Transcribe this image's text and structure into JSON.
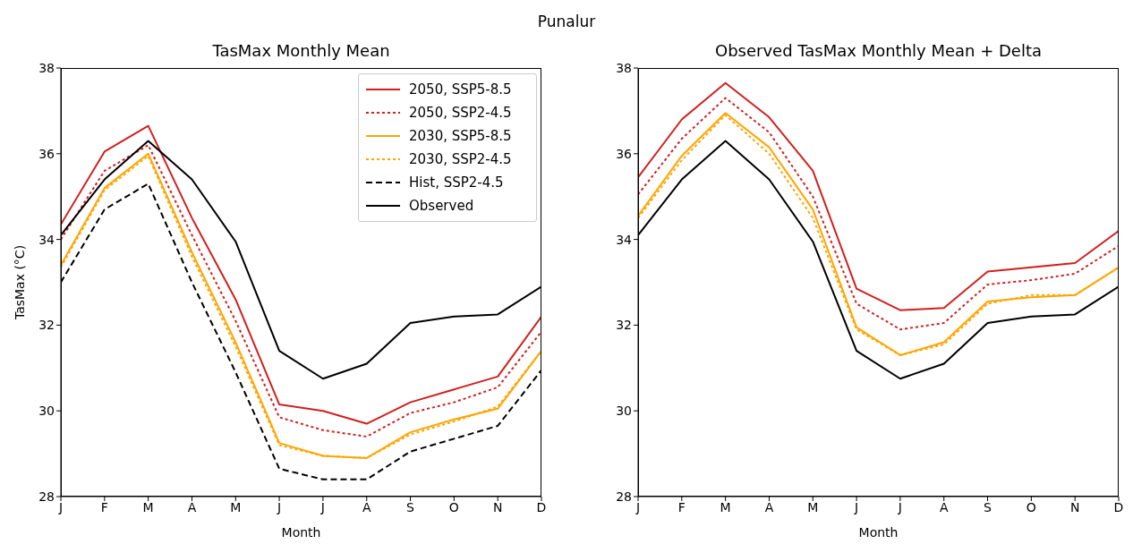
{
  "chart_data": [
    {
      "type": "line",
      "title": "TasMax Monthly Mean",
      "xlabel": "Month",
      "ylabel": "TasMax (°C)",
      "annotations": [
        "Punalur"
      ],
      "categories": [
        "J",
        "F",
        "M",
        "A",
        "M",
        "J",
        "J",
        "A",
        "S",
        "O",
        "N",
        "D"
      ],
      "series": [
        {
          "name": "2050, SSP5-8.5",
          "color": "#d11f1f",
          "line_style": "solid",
          "values": [
            34.35,
            36.05,
            36.65,
            34.5,
            32.6,
            30.15,
            30.0,
            29.7,
            30.2,
            30.5,
            30.8,
            32.2
          ]
        },
        {
          "name": "2050, SSP2-4.5",
          "color": "#d11f1f",
          "line_style": "dotted",
          "values": [
            34.0,
            35.6,
            36.2,
            34.1,
            32.1,
            29.85,
            29.55,
            29.4,
            29.95,
            30.2,
            30.55,
            31.85
          ]
        },
        {
          "name": "2030, SSP5-8.5",
          "color": "#ffa500",
          "line_style": "solid",
          "values": [
            33.4,
            35.2,
            36.0,
            33.7,
            31.6,
            29.25,
            28.95,
            28.9,
            29.5,
            29.8,
            30.05,
            31.4
          ]
        },
        {
          "name": "2030, SSP2-4.5",
          "color": "#ffa500",
          "line_style": "dotted",
          "values": [
            33.35,
            35.15,
            35.95,
            33.6,
            31.5,
            29.2,
            28.95,
            28.9,
            29.45,
            29.75,
            30.1,
            31.4
          ]
        },
        {
          "name": "Hist, SSP2-4.5",
          "color": "#000000",
          "line_style": "dashed",
          "values": [
            33.0,
            34.7,
            35.3,
            33.0,
            30.9,
            28.65,
            28.4,
            28.4,
            29.05,
            29.35,
            29.65,
            30.95
          ]
        },
        {
          "name": "Observed",
          "color": "#000000",
          "line_style": "solid",
          "values": [
            34.1,
            35.4,
            36.3,
            35.4,
            33.95,
            31.4,
            30.75,
            31.1,
            32.05,
            32.2,
            32.25,
            32.9
          ]
        }
      ],
      "ylim": [
        28,
        38
      ],
      "yticks": [
        28,
        30,
        32,
        34,
        36,
        38
      ],
      "grid": false,
      "legend": "top right",
      "marker": "none"
    },
    {
      "type": "line",
      "title": "Observed TasMax Monthly Mean + Delta",
      "xlabel": "Month",
      "categories": [
        "J",
        "F",
        "M",
        "A",
        "M",
        "J",
        "J",
        "A",
        "S",
        "O",
        "N",
        "D"
      ],
      "series": [
        {
          "color": "#d11f1f",
          "line_style": "solid",
          "values": [
            35.45,
            36.8,
            37.65,
            36.85,
            35.6,
            32.85,
            32.35,
            32.4,
            33.25,
            33.35,
            33.45,
            34.2
          ]
        },
        {
          "color": "#d11f1f",
          "line_style": "dotted",
          "values": [
            35.05,
            36.35,
            37.3,
            36.5,
            35.0,
            32.5,
            31.9,
            32.05,
            32.95,
            33.05,
            33.2,
            33.85
          ]
        },
        {
          "color": "#ffa500",
          "line_style": "solid",
          "values": [
            34.55,
            35.95,
            36.95,
            36.15,
            34.7,
            31.95,
            31.3,
            31.6,
            32.55,
            32.65,
            32.7,
            33.35
          ]
        },
        {
          "color": "#ffa500",
          "line_style": "dotted",
          "values": [
            34.5,
            35.85,
            36.9,
            36.0,
            34.5,
            31.9,
            31.3,
            31.55,
            32.5,
            32.7,
            32.7,
            33.35
          ]
        },
        {
          "color": "#000000",
          "line_style": "solid",
          "values": [
            34.1,
            35.4,
            36.3,
            35.4,
            33.95,
            31.4,
            30.75,
            31.1,
            32.05,
            32.2,
            32.25,
            32.9
          ]
        }
      ],
      "ylim": [
        28,
        38
      ],
      "yticks": [
        28,
        30,
        32,
        34,
        36,
        38
      ],
      "grid": false,
      "legend": false,
      "marker": "none"
    }
  ]
}
